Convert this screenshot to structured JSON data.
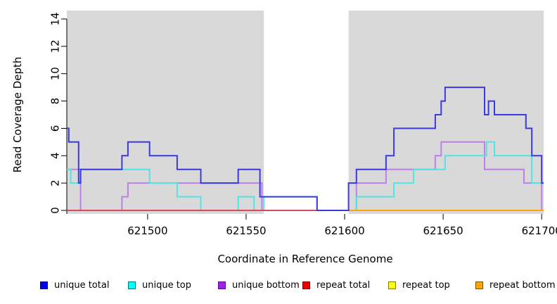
{
  "chart_data": {
    "type": "line",
    "subtype": "step-coverage",
    "title": "",
    "xlabel": "Coordinate in Reference Genome",
    "ylabel": "Read Coverage Depth",
    "xlim": [
      621459,
      621701
    ],
    "ylim": [
      0,
      14
    ],
    "x_ticks": [
      621500,
      621550,
      621600,
      621650,
      621700
    ],
    "y_ticks": [
      0,
      2,
      4,
      6,
      8,
      10,
      12,
      14
    ],
    "grid": false,
    "background_color": "#ffffff",
    "shaded_region_color": "#d9d9d9",
    "shaded_regions": [
      [
        621459,
        621559
      ],
      [
        621602,
        621701
      ]
    ],
    "gap_region": [
      621559,
      621602
    ],
    "legend_position": "bottom",
    "series": [
      {
        "name": "unique bottom",
        "line_color": "#bd80e8",
        "steps": [
          [
            621459,
            3
          ],
          [
            621466,
            0
          ],
          [
            621487,
            1
          ],
          [
            621490,
            2
          ],
          [
            621558,
            0
          ],
          [
            621606,
            2
          ],
          [
            621621,
            3
          ],
          [
            621646,
            4
          ],
          [
            621649,
            5
          ],
          [
            621671,
            3
          ],
          [
            621691,
            2
          ],
          [
            621700,
            0
          ]
        ]
      },
      {
        "name": "unique top",
        "line_color": "#55e2e2",
        "steps": [
          [
            621459,
            3
          ],
          [
            621461,
            2
          ],
          [
            621466,
            3
          ],
          [
            621501,
            2
          ],
          [
            621515,
            1
          ],
          [
            621527,
            0
          ],
          [
            621546,
            1
          ],
          [
            621554,
            0
          ],
          [
            621559,
            1
          ],
          [
            621586,
            0
          ],
          [
            621606,
            1
          ],
          [
            621625,
            2
          ],
          [
            621635,
            3
          ],
          [
            621651,
            4
          ],
          [
            621672,
            5
          ],
          [
            621676,
            4
          ],
          [
            621695,
            2
          ]
        ]
      },
      {
        "name": "repeat top",
        "line_color": "#ffff00",
        "steps": [
          [
            621459,
            0
          ]
        ]
      },
      {
        "name": "repeat total",
        "line_color": "#dc4860",
        "steps": [
          [
            621459,
            0
          ]
        ]
      },
      {
        "name": "repeat bottom",
        "line_color": "#ffa500",
        "steps": [
          [
            621459,
            0
          ],
          [
            621559,
            null
          ],
          [
            621602,
            0
          ]
        ]
      },
      {
        "name": "unique total",
        "line_color": "#3a3ae0",
        "steps": [
          [
            621459,
            6
          ],
          [
            621460,
            5
          ],
          [
            621465,
            2
          ],
          [
            621466,
            3
          ],
          [
            621487,
            4
          ],
          [
            621490,
            5
          ],
          [
            621501,
            4
          ],
          [
            621515,
            3
          ],
          [
            621527,
            2
          ],
          [
            621546,
            3
          ],
          [
            621557,
            1
          ],
          [
            621586,
            0
          ],
          [
            621602,
            2
          ],
          [
            621606,
            3
          ],
          [
            621621,
            4
          ],
          [
            621625,
            6
          ],
          [
            621646,
            7
          ],
          [
            621649,
            8
          ],
          [
            621651,
            9
          ],
          [
            621671,
            7
          ],
          [
            621673,
            8
          ],
          [
            621676,
            7
          ],
          [
            621692,
            6
          ],
          [
            621695,
            4
          ],
          [
            621700,
            2
          ]
        ]
      }
    ],
    "legend": [
      {
        "label": "unique total",
        "fill": "#0000ee",
        "border": "#00007a"
      },
      {
        "label": "unique top",
        "fill": "#00ffff",
        "border": "#007a7a"
      },
      {
        "label": "unique bottom",
        "fill": "#a020f0",
        "border": "#5a0d8a"
      },
      {
        "label": "repeat total",
        "fill": "#ee0000",
        "border": "#7a0000"
      },
      {
        "label": "repeat top",
        "fill": "#ffff00",
        "border": "#7a7a00"
      },
      {
        "label": "repeat bottom",
        "fill": "#ffa500",
        "border": "#7a5200"
      }
    ]
  }
}
